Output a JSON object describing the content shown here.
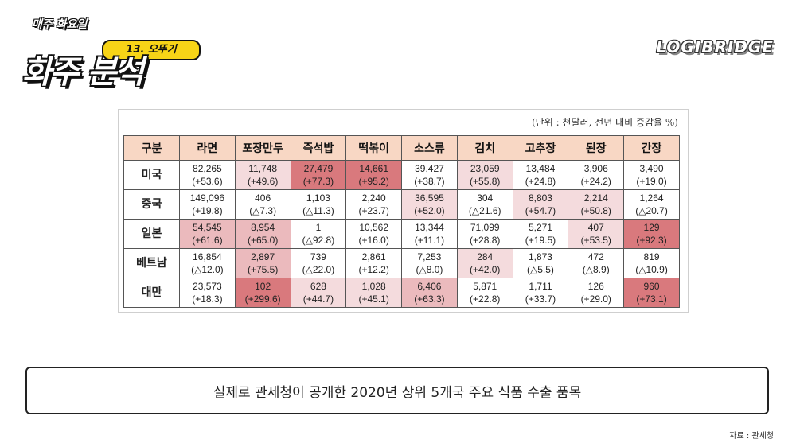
{
  "logo": {
    "top_line": "매주 화요일",
    "episode": "13. 오뚜기",
    "big_text": "화주 분석"
  },
  "brand": "LOGIBRIDGE",
  "unit_note": "(단위 : 천달러, 전년 대비 증감율 %)",
  "table": {
    "headers": [
      "구분",
      "라면",
      "포장만두",
      "즉석밥",
      "떡볶이",
      "소스류",
      "김치",
      "고추장",
      "된장",
      "간장"
    ],
    "rows": [
      {
        "label": "미국",
        "cells": [
          {
            "v": "82,265",
            "c": "(+53.6)",
            "h": 0
          },
          {
            "v": "11,748",
            "c": "(+49.6)",
            "h": 1
          },
          {
            "v": "27,479",
            "c": "(+77.3)",
            "h": 3
          },
          {
            "v": "14,661",
            "c": "(+95.2)",
            "h": 3
          },
          {
            "v": "39,427",
            "c": "(+38.7)",
            "h": 0
          },
          {
            "v": "23,059",
            "c": "(+55.8)",
            "h": 1
          },
          {
            "v": "13,484",
            "c": "(+24.8)",
            "h": 0
          },
          {
            "v": "3,906",
            "c": "(+24.2)",
            "h": 0
          },
          {
            "v": "3,490",
            "c": "(+19.0)",
            "h": 0
          }
        ]
      },
      {
        "label": "중국",
        "cells": [
          {
            "v": "149,096",
            "c": "(+19.8)",
            "h": 0
          },
          {
            "v": "406",
            "c": "(△7.3)",
            "h": 0
          },
          {
            "v": "1,103",
            "c": "(△11.3)",
            "h": 0
          },
          {
            "v": "2,240",
            "c": "(+23.7)",
            "h": 0
          },
          {
            "v": "36,595",
            "c": "(+52.0)",
            "h": 1
          },
          {
            "v": "304",
            "c": "(△21.6)",
            "h": 0
          },
          {
            "v": "8,803",
            "c": "(+54.7)",
            "h": 1
          },
          {
            "v": "2,214",
            "c": "(+50.8)",
            "h": 1
          },
          {
            "v": "1,264",
            "c": "(△20.7)",
            "h": 0
          }
        ]
      },
      {
        "label": "일본",
        "cells": [
          {
            "v": "54,545",
            "c": "(+61.6)",
            "h": 2
          },
          {
            "v": "8,954",
            "c": "(+65.0)",
            "h": 2
          },
          {
            "v": "1",
            "c": "(△92.8)",
            "h": 0
          },
          {
            "v": "10,562",
            "c": "(+16.0)",
            "h": 0
          },
          {
            "v": "13,344",
            "c": "(+11.1)",
            "h": 0
          },
          {
            "v": "71,099",
            "c": "(+28.8)",
            "h": 0
          },
          {
            "v": "5,271",
            "c": "(+19.5)",
            "h": 0
          },
          {
            "v": "407",
            "c": "(+53.5)",
            "h": 1
          },
          {
            "v": "129",
            "c": "(+92.3)",
            "h": 3
          }
        ]
      },
      {
        "label": "베트남",
        "cells": [
          {
            "v": "16,854",
            "c": "(△12.0)",
            "h": 0
          },
          {
            "v": "2,897",
            "c": "(+75.5)",
            "h": 2
          },
          {
            "v": "739",
            "c": "(△22.0)",
            "h": 0
          },
          {
            "v": "2,861",
            "c": "(+12.2)",
            "h": 0
          },
          {
            "v": "7,253",
            "c": "(△8.0)",
            "h": 0
          },
          {
            "v": "284",
            "c": "(+42.0)",
            "h": 1
          },
          {
            "v": "1,873",
            "c": "(△5.5)",
            "h": 0
          },
          {
            "v": "472",
            "c": "(△8.9)",
            "h": 0
          },
          {
            "v": "819",
            "c": "(△10.9)",
            "h": 0
          }
        ]
      },
      {
        "label": "대만",
        "cells": [
          {
            "v": "23,573",
            "c": "(+18.3)",
            "h": 0
          },
          {
            "v": "102",
            "c": "(+299.6)",
            "h": 3
          },
          {
            "v": "628",
            "c": "(+44.7)",
            "h": 1
          },
          {
            "v": "1,028",
            "c": "(+45.1)",
            "h": 1
          },
          {
            "v": "6,406",
            "c": "(+63.3)",
            "h": 2
          },
          {
            "v": "5,871",
            "c": "(+22.8)",
            "h": 0
          },
          {
            "v": "1,711",
            "c": "(+33.7)",
            "h": 0
          },
          {
            "v": "126",
            "c": "(+29.0)",
            "h": 0
          },
          {
            "v": "960",
            "c": "(+73.1)",
            "h": 3
          }
        ]
      }
    ]
  },
  "caption": "실제로 관세청이 공개한 2020년 상위 5개국 주요 식품 수출 품목",
  "source": "자료 : 관세청"
}
